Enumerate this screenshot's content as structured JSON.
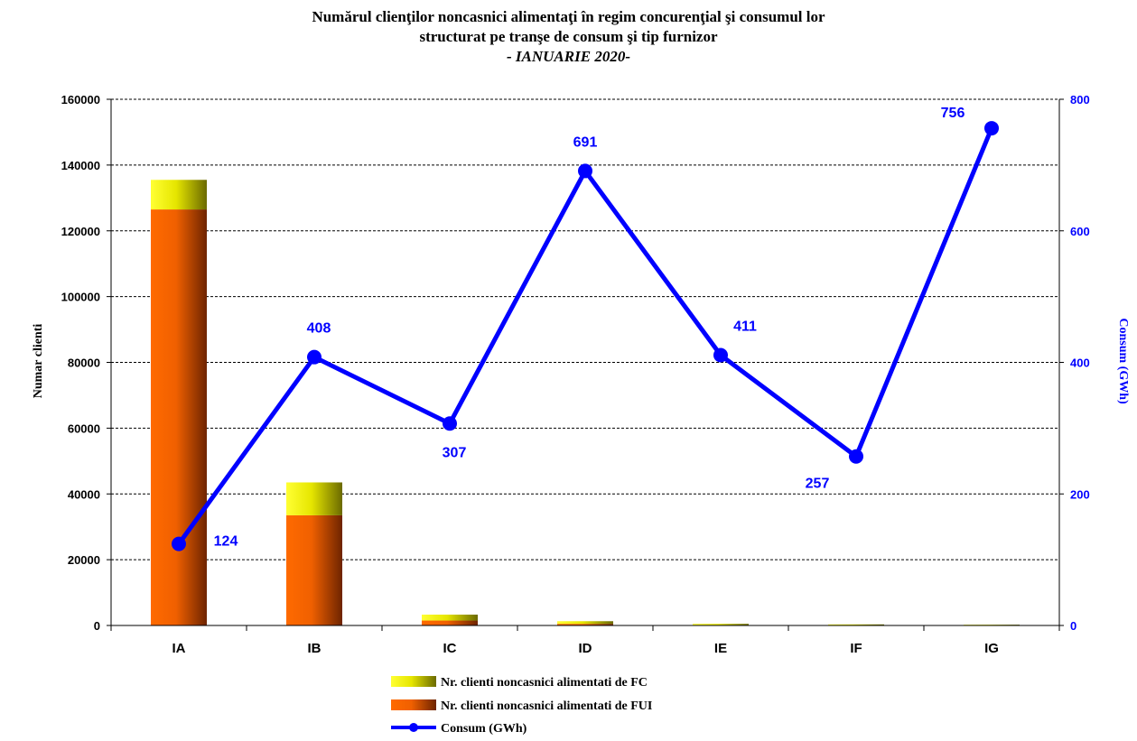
{
  "title": {
    "line1": "Numărul clienţilor noncasnici alimentaţi în regim concurenţial şi consumul lor",
    "line2": "structurat pe tranşe de consum şi tip furnizor",
    "line3": "- IANUARIE 2020-"
  },
  "chart_data": {
    "type": "bar",
    "stacked": true,
    "categories": [
      "IA",
      "IB",
      "IC",
      "ID",
      "IE",
      "IF",
      "IG"
    ],
    "series": [
      {
        "name": "Nr. clienti noncasnici alimentati de FUI",
        "kind": "bar",
        "axis": "left",
        "color": "#ff6a00",
        "values": [
          126500,
          33500,
          1500,
          500,
          150,
          80,
          40
        ]
      },
      {
        "name": "Nr. clienti noncasnici alimentati de FC",
        "kind": "bar",
        "axis": "left",
        "color": "#ffff33",
        "values": [
          9000,
          10000,
          1800,
          800,
          350,
          250,
          200
        ]
      },
      {
        "name": "Consum (GWh)",
        "kind": "line",
        "axis": "right",
        "color": "#0000ff",
        "values": [
          124,
          408,
          307,
          691,
          411,
          257,
          756
        ],
        "labels": [
          "124",
          "408",
          "307",
          "691",
          "411",
          "257",
          "756"
        ]
      }
    ],
    "ylabel": "Numar clienti",
    "y2label": "Consum (GWh)",
    "ylim": [
      0,
      160000
    ],
    "y2lim": [
      0,
      800
    ],
    "yticks": [
      "0",
      "20000",
      "40000",
      "60000",
      "80000",
      "100000",
      "120000",
      "140000",
      "160000"
    ],
    "y2ticks": [
      "0",
      "200",
      "400",
      "600",
      "800"
    ],
    "grid": true,
    "legend_position": "bottom"
  },
  "colors": {
    "fui": "#ff6a00",
    "fc": "#ffff33",
    "line": "#0000ff",
    "y2text": "#0000ff"
  }
}
